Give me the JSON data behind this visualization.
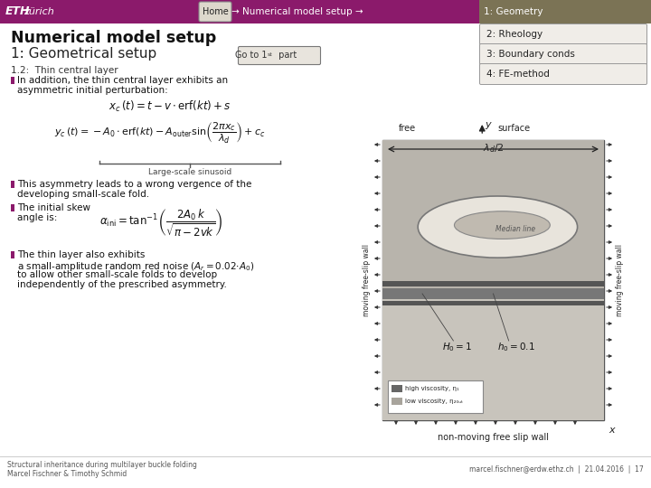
{
  "bg_color": "#ffffff",
  "header_color": "#8B1A6B",
  "nav_active_bg": "#7B7355",
  "body_bg": "#ffffff",
  "eth_bold": "ETH",
  "eth_light": "zürich",
  "nav_home": "Home",
  "nav_middle": " → Numerical model setup → ",
  "nav_active": "1: Geometry",
  "menu_items": [
    "2: Rheology",
    "3: Boundary conds",
    "4: FE-method"
  ],
  "title_line1": "Numerical model setup",
  "title_line2": "1: Geometrical setup",
  "subtitle": "1.2:  Thin central layer",
  "bullet_color": "#8B1A6B",
  "footer_left1": "Structural inheritance during multilayer buckle folding",
  "footer_left2": "Marcel Fischner & Timothy Schmid",
  "footer_right": "marcel.fischner@erdw.ethz.ch  |  21.04.2016  |  17",
  "footer_color": "#555555"
}
